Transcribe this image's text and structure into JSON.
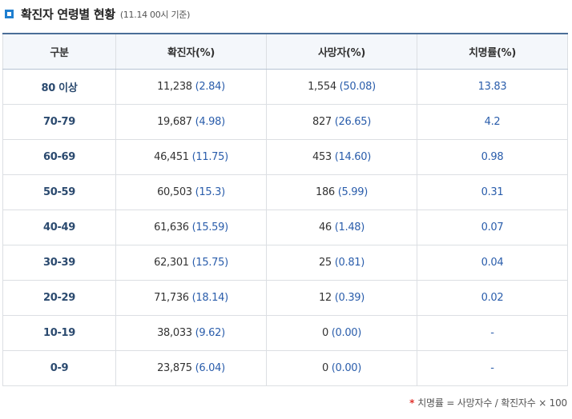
{
  "header": {
    "title": "확진자 연령별 현황",
    "subtitle": "(11.14 00시 기준)"
  },
  "table": {
    "columns": [
      "구분",
      "확진자(%)",
      "사망자(%)",
      "치명률(%)"
    ],
    "rows": [
      {
        "age": "80 이상",
        "cases": "11,238",
        "cases_pct": "(2.84)",
        "deaths": "1,554",
        "deaths_pct": "(50.08)",
        "fatality": "13.83"
      },
      {
        "age": "70-79",
        "cases": "19,687",
        "cases_pct": "(4.98)",
        "deaths": "827",
        "deaths_pct": "(26.65)",
        "fatality": "4.2"
      },
      {
        "age": "60-69",
        "cases": "46,451",
        "cases_pct": "(11.75)",
        "deaths": "453",
        "deaths_pct": "(14.60)",
        "fatality": "0.98"
      },
      {
        "age": "50-59",
        "cases": "60,503",
        "cases_pct": "(15.3)",
        "deaths": "186",
        "deaths_pct": "(5.99)",
        "fatality": "0.31"
      },
      {
        "age": "40-49",
        "cases": "61,636",
        "cases_pct": "(15.59)",
        "deaths": "46",
        "deaths_pct": "(1.48)",
        "fatality": "0.07"
      },
      {
        "age": "30-39",
        "cases": "62,301",
        "cases_pct": "(15.75)",
        "deaths": "25",
        "deaths_pct": "(0.81)",
        "fatality": "0.04"
      },
      {
        "age": "20-29",
        "cases": "71,736",
        "cases_pct": "(18.14)",
        "deaths": "12",
        "deaths_pct": "(0.39)",
        "fatality": "0.02"
      },
      {
        "age": "10-19",
        "cases": "38,033",
        "cases_pct": "(9.62)",
        "deaths": "0",
        "deaths_pct": "(0.00)",
        "fatality": "-"
      },
      {
        "age": "0-9",
        "cases": "23,875",
        "cases_pct": "(6.04)",
        "deaths": "0",
        "deaths_pct": "(0.00)",
        "fatality": "-"
      }
    ]
  },
  "footnote": {
    "marker": "*",
    "text": "치명률 = 사망자수 / 확진자수 × 100"
  },
  "colors": {
    "accent": "#1f7fd0",
    "value_blue": "#2a5dab",
    "header_bg": "#f4f7fb",
    "header_border": "#4b6e98",
    "footnote_marker": "#e0312b"
  },
  "icons": {
    "title_marker": "square-bullet-icon"
  }
}
